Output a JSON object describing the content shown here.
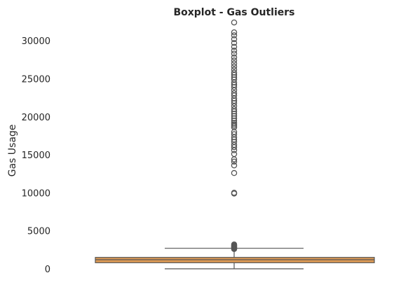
{
  "chart_data": {
    "type": "boxplot",
    "title": "Boxplot - Gas Outliers",
    "xlabel": "",
    "ylabel": "Gas Usage",
    "ylim": [
      0,
      32500
    ],
    "yticks": [
      0,
      5000,
      10000,
      15000,
      20000,
      25000,
      30000
    ],
    "grid": false,
    "box": {
      "whisker_low": 0,
      "q1": 800,
      "median": 1200,
      "q3": 1500,
      "whisker_high": 2700
    },
    "outliers": [
      2600,
      2700,
      2800,
      2900,
      3000,
      3100,
      3200,
      9900,
      10000,
      12600,
      13600,
      14100,
      14400,
      15100,
      15600,
      16000,
      16300,
      16700,
      17000,
      17300,
      17700,
      18000,
      18600,
      18800,
      19000,
      19200,
      19500,
      19800,
      20100,
      20400,
      20700,
      21000,
      21400,
      21800,
      22100,
      22400,
      22800,
      23100,
      23500,
      23900,
      24200,
      24500,
      24900,
      25200,
      25500,
      25800,
      26200,
      26600,
      27000,
      27400,
      27800,
      28300,
      28700,
      29200,
      29700,
      30200,
      30700,
      31100,
      32400
    ],
    "colors": {
      "box_fill": "#dd9a54",
      "line": "#555555",
      "outlier_edge": "#555555"
    }
  }
}
